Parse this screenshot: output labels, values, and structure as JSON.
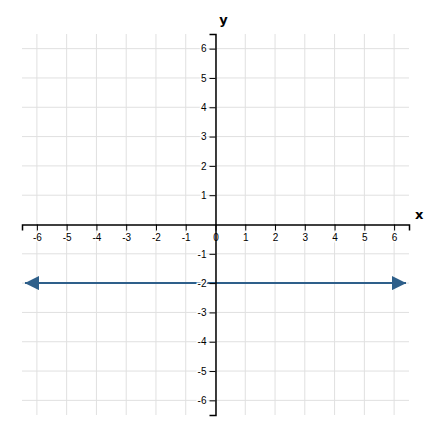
{
  "chart_data": {
    "type": "line",
    "x": [
      -6.4,
      6.4
    ],
    "values": [
      -2,
      -2
    ],
    "color": "#2E5F8A",
    "marker": "arrow",
    "xlabel": "x",
    "ylabel": "y",
    "xlim": [
      -6.5,
      6.5
    ],
    "ylim": [
      -6.5,
      6.5
    ],
    "xticks": [
      -6,
      -5,
      -4,
      -3,
      -2,
      -1,
      0,
      1,
      2,
      3,
      4,
      5,
      6
    ],
    "yticks": [
      -6,
      -5,
      -4,
      -3,
      -2,
      -1,
      1,
      2,
      3,
      4,
      5,
      6
    ],
    "grid": true
  }
}
